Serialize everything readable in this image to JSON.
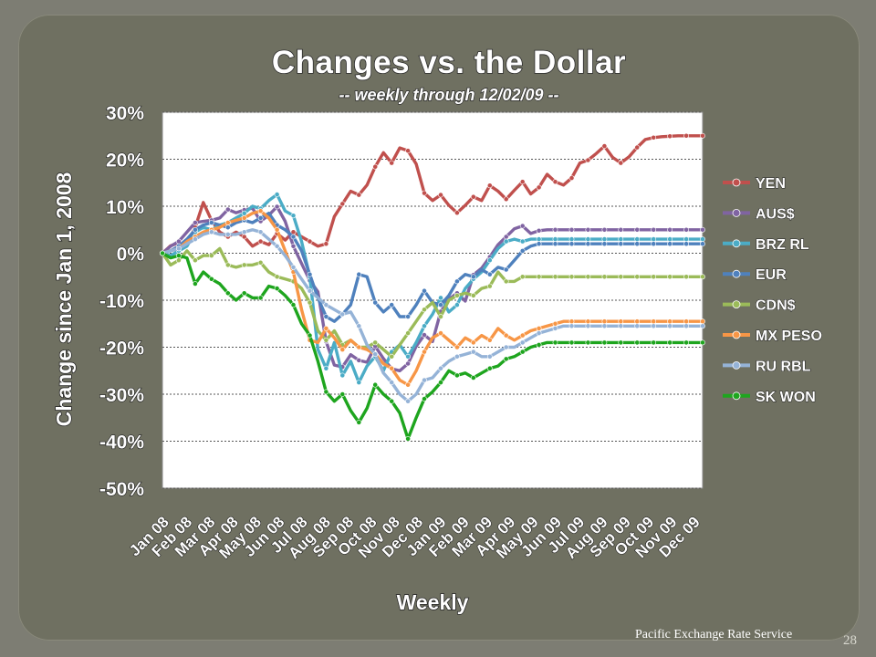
{
  "slide": {
    "source_note": "Pacific Exchange Rate Service",
    "page_number": "28"
  },
  "chart_data": {
    "type": "line",
    "title": "Changes vs. the Dollar",
    "subtitle": "-- weekly through 12/02/09 --",
    "xlabel": "Weekly",
    "ylabel": "Change since Jan 1, 2008",
    "ylim": [
      -50,
      30
    ],
    "yticks": [
      30,
      20,
      10,
      0,
      -10,
      -20,
      -30,
      -40,
      -50
    ],
    "ytick_labels": [
      "30%",
      "20%",
      "10%",
      "0%",
      "-10%",
      "-20%",
      "-30%",
      "-40%",
      "-50%"
    ],
    "grid": "horizontal dotted",
    "legend": "right",
    "categories": [
      "Jan 08",
      "Feb 08",
      "Mar 08",
      "Apr 08",
      "May 08",
      "Jun 08",
      "Jul 08",
      "Aug 08",
      "Sep 08",
      "Oct 08",
      "Nov 08",
      "Dec 08",
      "Jan 09",
      "Feb 09",
      "Mar 09",
      "Apr 09",
      "May 09",
      "Jun 09",
      "Jul 09",
      "Aug 09",
      "Sep 09",
      "Oct 09",
      "Nov 09",
      "Dec 09"
    ],
    "x": [
      0,
      1.5,
      3,
      4.5,
      6,
      7.5,
      9,
      10.5,
      12,
      13.5,
      15,
      16.5,
      18,
      19.5,
      21,
      22.5,
      24,
      25.5,
      27,
      28.5,
      30,
      31.5,
      33,
      34.5,
      36,
      37.5,
      39,
      40.5,
      42,
      43.5,
      45,
      46.5,
      48,
      49.5,
      51,
      52.5,
      54,
      55.5,
      57,
      58.5,
      60,
      61.5,
      63,
      64.5,
      66,
      67.5,
      69,
      70.5,
      72,
      73.5,
      75,
      76.5,
      78,
      79.5,
      81,
      82.5,
      84,
      85.5,
      87,
      88.5,
      90,
      91.5,
      93,
      94.5,
      96,
      97.5,
      99
    ],
    "series": [
      {
        "name": "YEN",
        "color": "#c0504d",
        "values": [
          0,
          1.6,
          2.2,
          1.8,
          5.5,
          10.8,
          7,
          4.5,
          3.5,
          4.5,
          3.5,
          1.5,
          2.5,
          1.8,
          4.2,
          2.8,
          4.5,
          3.5,
          2.5,
          1.5,
          2,
          7.8,
          10.5,
          13.2,
          12.4,
          14.5,
          18.4,
          21.4,
          19.2,
          22.4,
          21.8,
          19,
          12.8,
          11.2,
          12.4,
          10.2,
          8.6,
          10.2,
          12,
          11.2,
          14.4,
          13.2,
          11.5,
          13.4,
          15.2,
          12.6,
          14,
          16.8,
          15.2,
          14.5,
          16,
          19.2,
          19.8,
          21.2,
          22.8,
          20.4,
          19.2,
          20.5,
          22.5,
          24.2,
          24.6,
          24.8,
          24.9,
          25,
          25,
          25,
          25
        ]
      },
      {
        "name": "AUS$",
        "color": "#8064a2",
        "values": [
          0,
          1.5,
          2.5,
          4.5,
          6.5,
          6.8,
          7,
          7.5,
          9.3,
          8.6,
          9.2,
          9.6,
          6.8,
          8.1,
          9.9,
          6.8,
          1.5,
          -2.2,
          -5.8,
          -8.2,
          -18.8,
          -23.8,
          -24.2,
          -21.6,
          -22.8,
          -23.2,
          -19.8,
          -22.4,
          -24.6,
          -25,
          -23.5,
          -19.8,
          -17.4,
          -18.8,
          -12.4,
          -9.8,
          -8.5,
          -10.2,
          -4.6,
          -3.2,
          -0.8,
          1.8,
          3.5,
          5.2,
          5.8,
          4.2,
          4.8,
          5,
          5,
          5,
          5,
          5,
          5,
          5,
          5,
          5,
          5,
          5,
          5,
          5,
          5,
          5,
          5,
          5,
          5,
          5,
          5
        ]
      },
      {
        "name": "BRZ RL",
        "color": "#4bacc6",
        "values": [
          0,
          -0.5,
          0.5,
          1.5,
          4.5,
          5.5,
          5,
          6,
          6.5,
          7.5,
          8.5,
          10,
          9.5,
          11.2,
          12.5,
          9,
          8,
          2.5,
          -5,
          -20.5,
          -24.5,
          -19,
          -26,
          -23,
          -27.5,
          -24,
          -22,
          -25,
          -21,
          -19.5,
          -22,
          -19,
          -15.5,
          -13,
          -9.5,
          -12.5,
          -11,
          -7.5,
          -5.5,
          -4,
          -1.5,
          1,
          2.5,
          3,
          2.5,
          3,
          3,
          3,
          3,
          3,
          3,
          3,
          3,
          3,
          3,
          3,
          3,
          3,
          3,
          3,
          3,
          3,
          3,
          3,
          3,
          3,
          3
        ]
      },
      {
        "name": "EUR",
        "color": "#4f81bd",
        "values": [
          0,
          0.5,
          1.5,
          3,
          5,
          6,
          6.5,
          6,
          5.5,
          6.5,
          7,
          6.5,
          7.5,
          8.5,
          6,
          5,
          3.5,
          0.5,
          -4.5,
          -9.5,
          -13.5,
          -14.5,
          -13,
          -11,
          -4.5,
          -5,
          -10.5,
          -12.5,
          -11,
          -13.5,
          -13.5,
          -11,
          -8,
          -10.5,
          -11,
          -9,
          -6,
          -4.5,
          -5,
          -3.5,
          -4.5,
          -3,
          -3.5,
          -1.5,
          0.5,
          1.5,
          2,
          2,
          2,
          2,
          2,
          2,
          2,
          2,
          2,
          2,
          2,
          2,
          2,
          2,
          2,
          2,
          2,
          2,
          2,
          2,
          2
        ]
      },
      {
        "name": "CDN$",
        "color": "#9bbb59",
        "values": [
          0,
          -2.5,
          -1.5,
          0.5,
          -1.5,
          -0.5,
          -0.5,
          1,
          -2.5,
          -3,
          -2.5,
          -2.5,
          -2,
          -4,
          -5,
          -5.5,
          -6,
          -7.5,
          -10.5,
          -16.5,
          -18.5,
          -16.5,
          -19.5,
          -18.5,
          -20,
          -20,
          -19,
          -20.5,
          -22,
          -19.5,
          -17,
          -14.5,
          -12,
          -10.5,
          -13.5,
          -10,
          -9,
          -8.5,
          -9,
          -7.5,
          -7,
          -4,
          -6,
          -6,
          -5,
          -5,
          -5,
          -5,
          -5,
          -5,
          -5,
          -5,
          -5,
          -5,
          -5,
          -5,
          -5,
          -5,
          -5,
          -5,
          -5,
          -5,
          -5,
          -5,
          -5,
          -5,
          -5
        ]
      },
      {
        "name": "MX PESO",
        "color": "#f79646",
        "values": [
          0,
          0.5,
          1,
          2.5,
          3.5,
          4.5,
          5,
          5.5,
          6.5,
          7,
          7.5,
          8.5,
          9,
          7.5,
          5,
          0.5,
          -4,
          -12,
          -18.5,
          -19,
          -16,
          -18,
          -20.5,
          -18.5,
          -20,
          -20.5,
          -21.5,
          -23.5,
          -24.5,
          -27,
          -28,
          -25,
          -21,
          -18,
          -17,
          -18.5,
          -20,
          -18,
          -19,
          -17.5,
          -18.5,
          -16,
          -17.5,
          -18.5,
          -17.5,
          -16.5,
          -16,
          -15.5,
          -15,
          -14.5,
          -14.5,
          -14.5,
          -14.5,
          -14.5,
          -14.5,
          -14.5,
          -14.5,
          -14.5,
          -14.5,
          -14.5,
          -14.5,
          -14.5,
          -14.5,
          -14.5,
          -14.5,
          -14.5,
          -14.5
        ]
      },
      {
        "name": "RU RBL",
        "color": "#95b3d7",
        "values": [
          0,
          0.5,
          1,
          2,
          3,
          4,
          4.5,
          4,
          4,
          4,
          4.5,
          5,
          4.5,
          3,
          1.5,
          -0.5,
          -3,
          -5.5,
          -8,
          -9.5,
          -11,
          -12,
          -13,
          -12.5,
          -15.5,
          -19.5,
          -21.5,
          -25.5,
          -27.5,
          -30,
          -31.5,
          -30,
          -27,
          -26.5,
          -24.5,
          -23,
          -22,
          -21.5,
          -21,
          -22,
          -22,
          -21,
          -20,
          -20,
          -19,
          -18,
          -17,
          -16.5,
          -16,
          -15.5,
          -15.5,
          -15.5,
          -15.5,
          -15.5,
          -15.5,
          -15.5,
          -15.5,
          -15.5,
          -15.5,
          -15.5,
          -15.5,
          -15.5,
          -15.5,
          -15.5,
          -15.5,
          -15.5,
          -15.5
        ]
      },
      {
        "name": "SK WON",
        "color": "#1ea51e",
        "values": [
          0,
          -1,
          -0.5,
          -1,
          -6.5,
          -4,
          -5.5,
          -6.5,
          -8.5,
          -10,
          -8.5,
          -9.5,
          -9.5,
          -7,
          -7.5,
          -9,
          -11,
          -15,
          -17.5,
          -23,
          -29.5,
          -31.5,
          -30,
          -33.5,
          -36,
          -33,
          -28,
          -30,
          -31.5,
          -34,
          -39.5,
          -35,
          -31,
          -29.5,
          -27.5,
          -25,
          -26,
          -25.5,
          -26.5,
          -25.5,
          -24.5,
          -24,
          -22.5,
          -22,
          -21,
          -20,
          -19.5,
          -19,
          -19,
          -19,
          -19,
          -19,
          -19,
          -19,
          -19,
          -19,
          -19,
          -19,
          -19,
          -19,
          -19,
          -19,
          -19,
          -19,
          -19,
          -19,
          -19
        ]
      }
    ]
  }
}
